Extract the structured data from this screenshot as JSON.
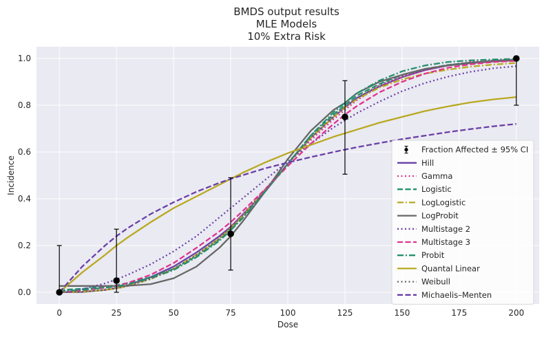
{
  "chart_data": {
    "type": "line",
    "title_lines": [
      "BMDS output results",
      "MLE Models",
      "10% Extra Risk"
    ],
    "xlabel": "Dose",
    "ylabel": "Incidence",
    "xlim": [
      -10,
      210
    ],
    "ylim": [
      -0.05,
      1.05
    ],
    "xticks": [
      0,
      25,
      50,
      75,
      100,
      125,
      150,
      175,
      200
    ],
    "yticks": [
      0.0,
      0.2,
      0.4,
      0.6,
      0.8,
      1.0
    ],
    "grid": true,
    "legend_position": "lower-right",
    "observed": {
      "name": "Fraction Affected ± 95% CI",
      "x": [
        0,
        25,
        75,
        125,
        200
      ],
      "y": [
        0.0,
        0.05,
        0.25,
        0.75,
        1.0
      ],
      "lower": [
        0.0,
        0.0,
        0.095,
        0.505,
        0.8
      ],
      "upper": [
        0.2,
        0.27,
        0.49,
        0.905,
        1.0
      ]
    },
    "x": [
      0,
      10,
      20,
      25,
      30,
      40,
      50,
      60,
      70,
      75,
      80,
      90,
      100,
      110,
      120,
      125,
      130,
      140,
      150,
      160,
      170,
      180,
      190,
      200
    ],
    "series": [
      {
        "name": "Hill",
        "color": "#6a3fa8",
        "dash": "solid",
        "values": [
          0.0,
          0.001,
          0.01,
          0.018,
          0.03,
          0.065,
          0.11,
          0.17,
          0.24,
          0.28,
          0.33,
          0.43,
          0.55,
          0.66,
          0.75,
          0.79,
          0.83,
          0.88,
          0.92,
          0.95,
          0.97,
          0.98,
          0.99,
          0.995
        ]
      },
      {
        "name": "Gamma",
        "color": "#e0338f",
        "dash": "dot",
        "values": [
          0.0,
          0.002,
          0.012,
          0.02,
          0.03,
          0.06,
          0.1,
          0.16,
          0.23,
          0.28,
          0.33,
          0.44,
          0.55,
          0.65,
          0.74,
          0.78,
          0.82,
          0.88,
          0.92,
          0.95,
          0.97,
          0.985,
          0.99,
          0.995
        ]
      },
      {
        "name": "Logistic",
        "color": "#22906c",
        "dash": "dashed",
        "values": [
          0.01,
          0.015,
          0.025,
          0.03,
          0.04,
          0.065,
          0.1,
          0.155,
          0.225,
          0.27,
          0.32,
          0.43,
          0.55,
          0.67,
          0.76,
          0.8,
          0.84,
          0.89,
          0.93,
          0.955,
          0.972,
          0.982,
          0.989,
          0.993
        ]
      },
      {
        "name": "LogLogistic",
        "color": "#b8a81f",
        "dash": "dashdot",
        "values": [
          0.0,
          0.002,
          0.01,
          0.017,
          0.027,
          0.057,
          0.1,
          0.16,
          0.23,
          0.275,
          0.325,
          0.435,
          0.55,
          0.66,
          0.75,
          0.79,
          0.825,
          0.875,
          0.91,
          0.935,
          0.952,
          0.965,
          0.974,
          0.981
        ]
      },
      {
        "name": "LogProbit",
        "color": "#666666",
        "dash": "solid",
        "values": [
          0.027,
          0.027,
          0.027,
          0.027,
          0.028,
          0.035,
          0.06,
          0.11,
          0.19,
          0.24,
          0.3,
          0.43,
          0.57,
          0.69,
          0.78,
          0.81,
          0.85,
          0.9,
          0.93,
          0.955,
          0.97,
          0.98,
          0.987,
          0.992
        ]
      },
      {
        "name": "Multistage 2",
        "color": "#6a3fa8",
        "dash": "dot",
        "values": [
          0.0,
          0.013,
          0.038,
          0.055,
          0.075,
          0.12,
          0.175,
          0.24,
          0.32,
          0.36,
          0.4,
          0.48,
          0.56,
          0.635,
          0.705,
          0.735,
          0.765,
          0.815,
          0.86,
          0.895,
          0.922,
          0.943,
          0.958,
          0.967
        ]
      },
      {
        "name": "Multistage 3",
        "color": "#e0338f",
        "dash": "dashed",
        "values": [
          0.0,
          0.008,
          0.02,
          0.027,
          0.04,
          0.075,
          0.125,
          0.19,
          0.26,
          0.3,
          0.345,
          0.44,
          0.54,
          0.635,
          0.72,
          0.76,
          0.795,
          0.855,
          0.9,
          0.935,
          0.96,
          0.975,
          0.985,
          0.99
        ]
      },
      {
        "name": "Probit",
        "color": "#22906c",
        "dash": "dashdot",
        "values": [
          0.005,
          0.01,
          0.02,
          0.025,
          0.035,
          0.06,
          0.095,
          0.15,
          0.22,
          0.265,
          0.315,
          0.43,
          0.55,
          0.67,
          0.77,
          0.81,
          0.85,
          0.905,
          0.945,
          0.97,
          0.985,
          0.992,
          0.996,
          0.998
        ]
      },
      {
        "name": "Quantal Linear",
        "color": "#b8a81f",
        "dash": "solid",
        "values": [
          0.0,
          0.085,
          0.16,
          0.2,
          0.235,
          0.3,
          0.36,
          0.41,
          0.46,
          0.485,
          0.51,
          0.555,
          0.595,
          0.63,
          0.665,
          0.68,
          0.695,
          0.725,
          0.75,
          0.775,
          0.795,
          0.812,
          0.825,
          0.835
        ]
      },
      {
        "name": "Weibull",
        "color": "#666666",
        "dash": "dot",
        "values": [
          0.0,
          0.002,
          0.01,
          0.017,
          0.027,
          0.057,
          0.1,
          0.16,
          0.23,
          0.275,
          0.325,
          0.435,
          0.55,
          0.66,
          0.755,
          0.795,
          0.83,
          0.885,
          0.925,
          0.955,
          0.972,
          0.984,
          0.991,
          0.995
        ]
      },
      {
        "name": "Michaelis–Menten",
        "color": "#6a3fa8",
        "dash": "dashed",
        "values": [
          0.0,
          0.11,
          0.2,
          0.24,
          0.275,
          0.335,
          0.385,
          0.43,
          0.468,
          0.485,
          0.5,
          0.53,
          0.555,
          0.578,
          0.6,
          0.61,
          0.62,
          0.638,
          0.655,
          0.67,
          0.685,
          0.698,
          0.71,
          0.72
        ]
      }
    ]
  }
}
